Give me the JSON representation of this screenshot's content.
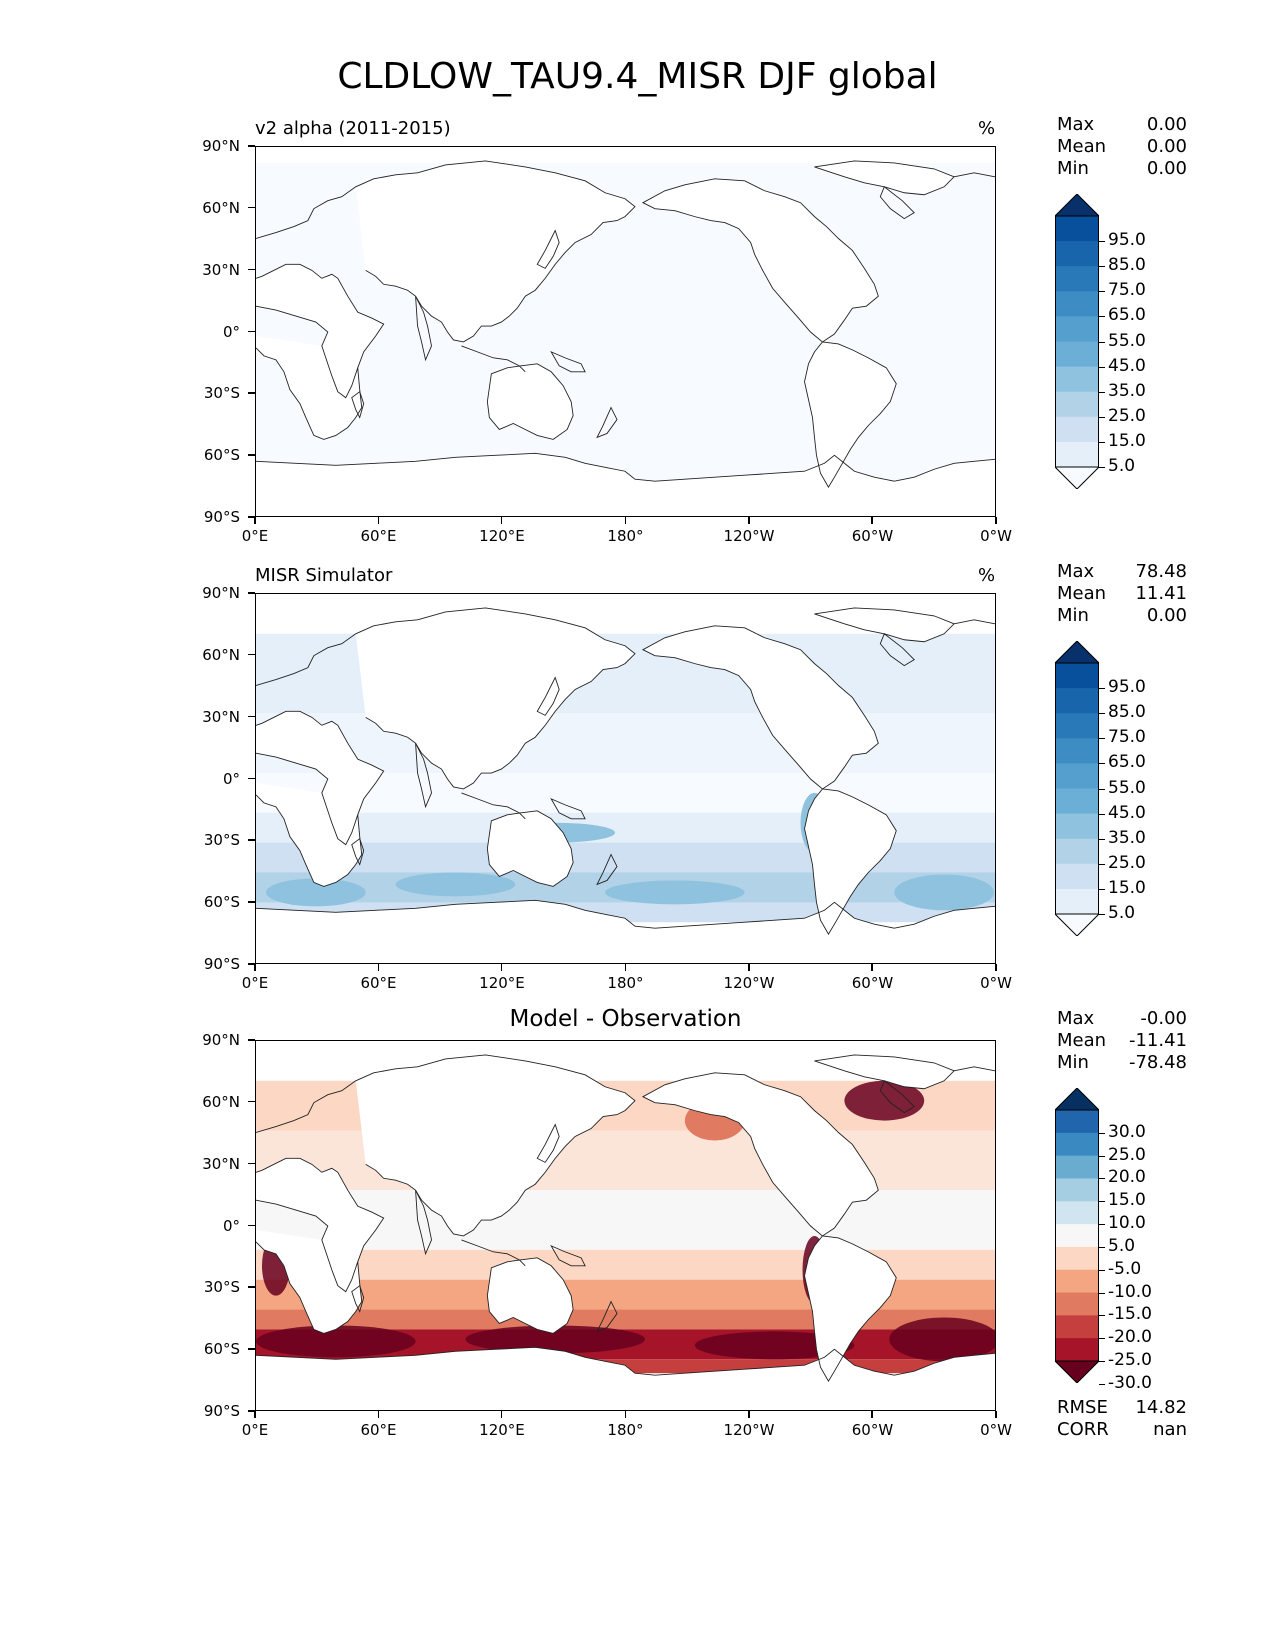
{
  "title": "CLDLOW_TAU9.4_MISR DJF global",
  "xticks": [
    "0°E",
    "60°E",
    "120°E",
    "180°",
    "120°W",
    "60°W",
    "0°W"
  ],
  "yticks": [
    "90°N",
    "60°N",
    "30°N",
    "0°",
    "30°S",
    "60°S",
    "90°S"
  ],
  "panels": [
    {
      "subtitle": "v2 alpha (2011-2015)",
      "units": "%",
      "center_title": "",
      "stats": [
        {
          "label": "Max",
          "value": "0.00"
        },
        {
          "label": "Mean",
          "value": "0.00"
        },
        {
          "label": "Min",
          "value": "0.00"
        }
      ],
      "colorbar": {
        "labels": [
          "95.0",
          "85.0",
          "75.0",
          "65.0",
          "55.0",
          "45.0",
          "35.0",
          "25.0",
          "15.0",
          "5.0"
        ],
        "colors": [
          "#08306b",
          "#08509b",
          "#1865ac",
          "#2979b9",
          "#3d8dc4",
          "#549fcd",
          "#6baed6",
          "#8fc2de",
          "#b2d2e8",
          "#cee0f2",
          "#e4eff9",
          "#f7fbff"
        ]
      }
    },
    {
      "subtitle": "MISR Simulator",
      "units": "%",
      "center_title": "",
      "stats": [
        {
          "label": "Max",
          "value": "78.48"
        },
        {
          "label": "Mean",
          "value": "11.41"
        },
        {
          "label": "Min",
          "value": "0.00"
        }
      ],
      "colorbar": {
        "labels": [
          "95.0",
          "85.0",
          "75.0",
          "65.0",
          "55.0",
          "45.0",
          "35.0",
          "25.0",
          "15.0",
          "5.0"
        ],
        "colors": [
          "#08306b",
          "#08509b",
          "#1865ac",
          "#2979b9",
          "#3d8dc4",
          "#549fcd",
          "#6baed6",
          "#8fc2de",
          "#b2d2e8",
          "#cee0f2",
          "#e4eff9",
          "#f7fbff"
        ]
      }
    },
    {
      "subtitle": "",
      "units": "",
      "center_title": "Model - Observation",
      "stats": [
        {
          "label": "Max",
          "value": "-0.00"
        },
        {
          "label": "Mean",
          "value": "-11.41"
        },
        {
          "label": "Min",
          "value": "-78.48"
        }
      ],
      "colorbar": {
        "labels": [
          "30.0",
          "25.0",
          "20.0",
          "15.0",
          "10.0",
          "5.0",
          "-5.0",
          "-10.0",
          "-15.0",
          "-20.0",
          "-25.0",
          "-30.0"
        ],
        "colors": [
          "#053061",
          "#2166ac",
          "#3a89c1",
          "#6aacd0",
          "#a6cee3",
          "#d1e5f0",
          "#f7f7f7",
          "#fbd7c4",
          "#f4a582",
          "#e07b62",
          "#c63f3f",
          "#a51429",
          "#67001f"
        ]
      },
      "errors": [
        {
          "label": "RMSE",
          "value": "14.82"
        },
        {
          "label": "CORR",
          "value": "nan"
        }
      ]
    }
  ],
  "chart_data": {
    "type": "heatmap",
    "title": "CLDLOW_TAU9.4_MISR DJF global",
    "xlim": [
      0,
      360
    ],
    "ylim": [
      -90,
      90
    ],
    "maps": [
      {
        "name": "v2 alpha (2011-2015)",
        "units": "%",
        "max": 0.0,
        "mean": 0.0,
        "min": 0.0
      },
      {
        "name": "MISR Simulator",
        "units": "%",
        "max": 78.48,
        "mean": 11.41,
        "min": 0.0
      },
      {
        "name": "Model - Observation",
        "max": -0.0,
        "mean": -11.41,
        "min": -78.48,
        "rmse": 14.82,
        "corr": "nan"
      }
    ],
    "levels_abs": [
      5,
      15,
      25,
      35,
      45,
      55,
      65,
      75,
      85,
      95
    ],
    "levels_diff": [
      -30,
      -25,
      -20,
      -15,
      -10,
      -5,
      5,
      10,
      15,
      20,
      25,
      30
    ]
  }
}
